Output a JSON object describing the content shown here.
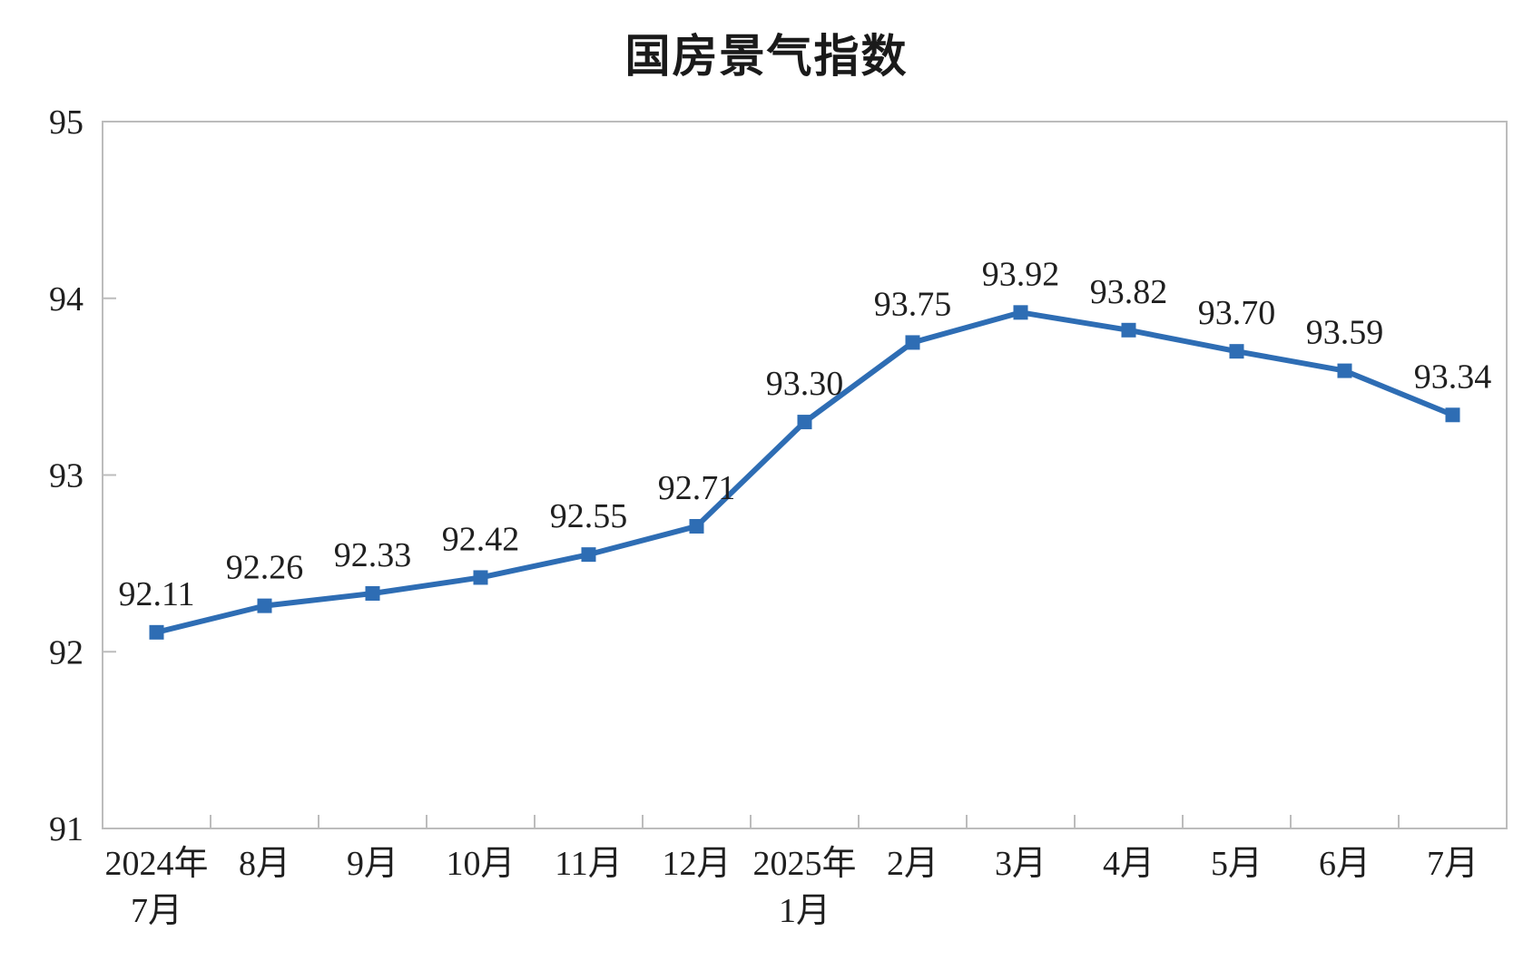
{
  "chart_data": {
    "type": "line",
    "title": "国房景气指数",
    "categories": [
      [
        "2024年",
        "7月"
      ],
      [
        "8月"
      ],
      [
        "9月"
      ],
      [
        "10月"
      ],
      [
        "11月"
      ],
      [
        "12月"
      ],
      [
        "2025年",
        "1月"
      ],
      [
        "2月"
      ],
      [
        "3月"
      ],
      [
        "4月"
      ],
      [
        "5月"
      ],
      [
        "6月"
      ],
      [
        "7月"
      ]
    ],
    "values": [
      92.11,
      92.26,
      92.33,
      92.42,
      92.55,
      92.71,
      93.3,
      93.75,
      93.92,
      93.82,
      93.7,
      93.59,
      93.34
    ],
    "data_labels": [
      "92.11",
      "92.26",
      "92.33",
      "92.42",
      "92.55",
      "92.71",
      "93.30",
      "93.75",
      "93.92",
      "93.82",
      "93.70",
      "93.59",
      "93.34"
    ],
    "xlabel": "",
    "ylabel": "",
    "ylim": [
      91,
      95
    ],
    "yticks": [
      91,
      92,
      93,
      94,
      95
    ],
    "grid": false,
    "legend": "none",
    "marker": "square",
    "line_color": "#2E6DB4",
    "marker_color": "#2E6DB4",
    "axis_color": "#bcbcbc",
    "text_color": "#1f1f1f",
    "background_color": "#ffffff"
  }
}
